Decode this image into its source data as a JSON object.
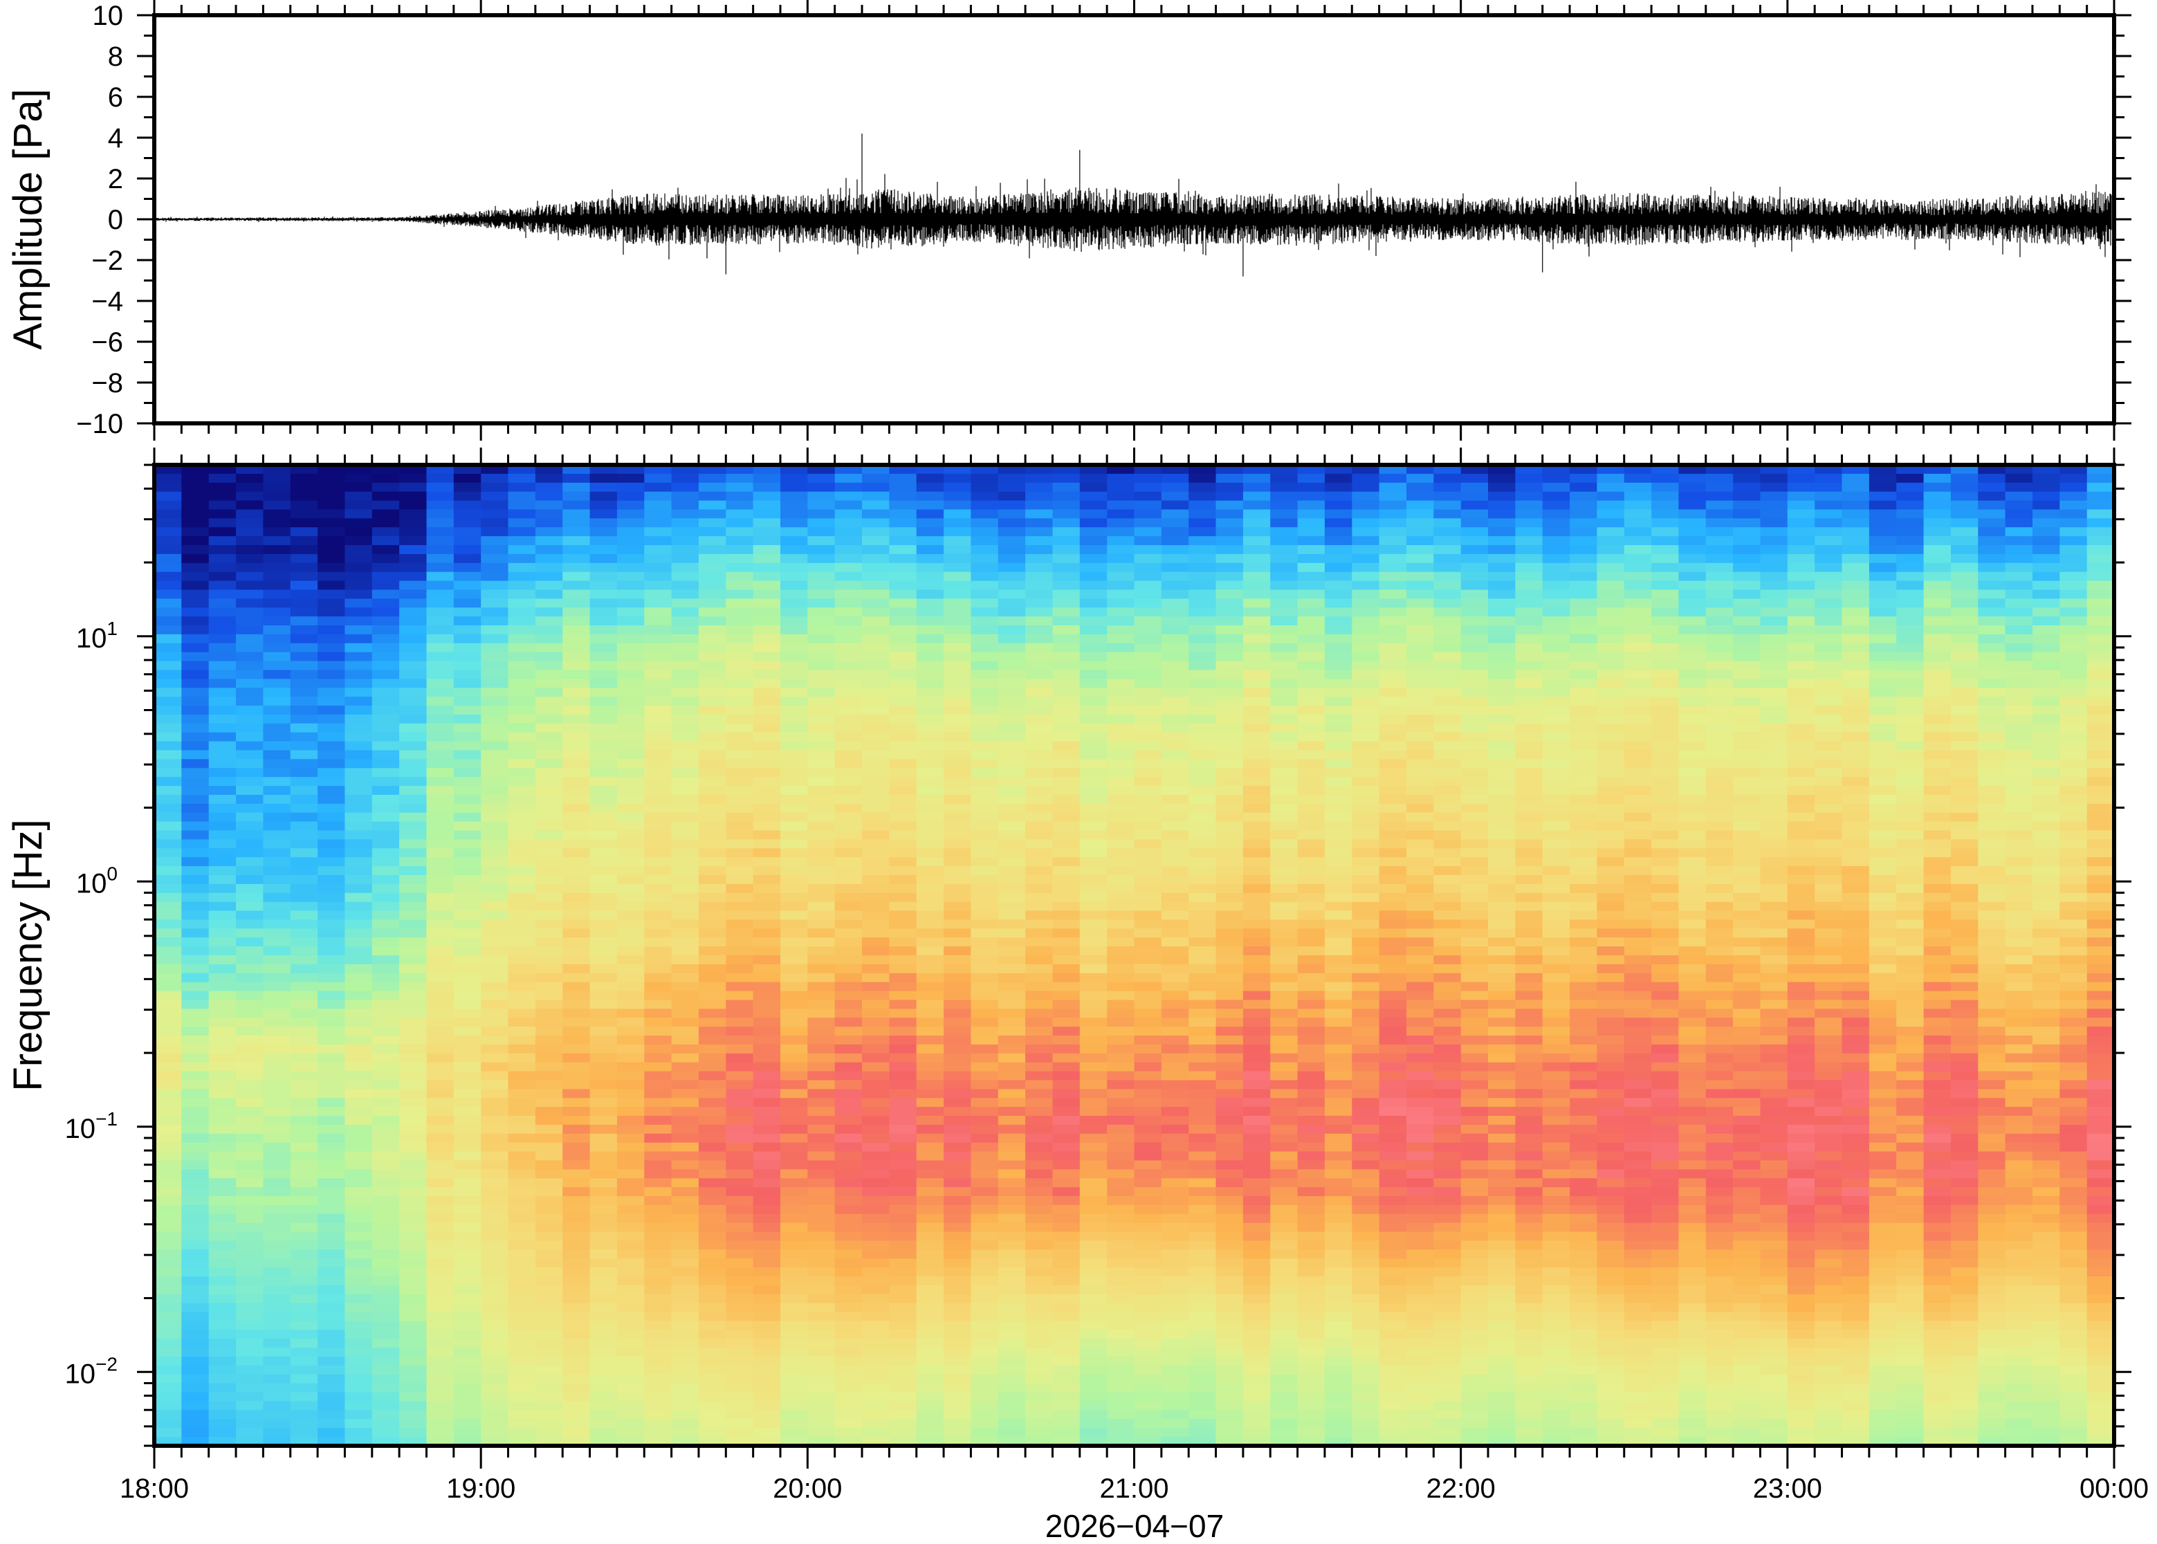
{
  "chart_data": [
    {
      "type": "line",
      "ylabel": "Amplitude [Pa]",
      "ylim": [
        -10,
        10
      ],
      "yticks": [
        "10",
        "8",
        "6",
        "4",
        "2",
        "0",
        "−2",
        "−4",
        "−6",
        "−8",
        "−10"
      ],
      "ytick_values": [
        10,
        8,
        6,
        4,
        2,
        0,
        -2,
        -4,
        -6,
        -8,
        -10
      ],
      "xlim": [
        "18:00",
        "00:00"
      ],
      "grid": false,
      "color": "#000000",
      "envelope": {
        "time": [
          "18:00",
          "18:45",
          "19:00",
          "19:15",
          "19:30",
          "20:00",
          "20:15",
          "20:30",
          "20:50",
          "21:15",
          "21:30",
          "22:00",
          "22:30",
          "23:00",
          "23:30",
          "00:00"
        ],
        "amplitude": [
          0.08,
          0.1,
          0.4,
          0.8,
          1.3,
          1.2,
          1.5,
          1.1,
          1.6,
          1.2,
          1.3,
          1.0,
          1.3,
          1.1,
          1.0,
          1.4
        ]
      },
      "peaks": [
        {
          "time": "19:45",
          "value": -2.7
        },
        {
          "time": "20:10",
          "value": 4.2
        },
        {
          "time": "20:50",
          "value": 3.4
        },
        {
          "time": "21:20",
          "value": -2.8
        },
        {
          "time": "22:15",
          "value": -2.6
        }
      ]
    },
    {
      "type": "heatmap",
      "ylabel": "Frequency [Hz]",
      "yscale": "log",
      "ylim": [
        0.005,
        50
      ],
      "yticks": [
        {
          "base": "10",
          "exp": "1",
          "value": 10
        },
        {
          "base": "10",
          "exp": "0",
          "value": 1
        },
        {
          "base": "10",
          "exp": "−1",
          "value": 0.1
        },
        {
          "base": "10",
          "exp": "−2",
          "value": 0.01
        }
      ],
      "xlabel": "2026−04−07",
      "xticks": [
        "18:00",
        "19:00",
        "20:00",
        "21:00",
        "22:00",
        "23:00",
        "00:00"
      ],
      "colormap": [
        "#0b0a78",
        "#1450e6",
        "#28b4ff",
        "#64e6e6",
        "#b4f5a0",
        "#e6f08c",
        "#f5dc78",
        "#fcb450",
        "#f56464",
        "#ff8c96"
      ],
      "time_bins": [
        "18:00",
        "18:30",
        "19:00",
        "19:30",
        "20:00",
        "20:30",
        "21:00",
        "21:30",
        "22:00",
        "22:30",
        "23:00",
        "23:30",
        "00:00"
      ],
      "freq_bins": [
        50,
        20,
        10,
        5,
        2,
        1,
        0.5,
        0.2,
        0.1,
        0.05,
        0.02,
        0.01,
        0.005
      ],
      "relative_level": [
        [
          0.0,
          0.0,
          0.02,
          0.1,
          0.12,
          0.08,
          0.06,
          0.08,
          0.07,
          0.1,
          0.06,
          0.08,
          0.12
        ],
        [
          0.06,
          0.05,
          0.15,
          0.3,
          0.33,
          0.28,
          0.26,
          0.28,
          0.27,
          0.3,
          0.24,
          0.28,
          0.3
        ],
        [
          0.16,
          0.15,
          0.3,
          0.46,
          0.48,
          0.44,
          0.42,
          0.44,
          0.44,
          0.46,
          0.42,
          0.44,
          0.46
        ],
        [
          0.22,
          0.2,
          0.4,
          0.56,
          0.58,
          0.56,
          0.55,
          0.56,
          0.56,
          0.58,
          0.55,
          0.56,
          0.57
        ],
        [
          0.24,
          0.23,
          0.46,
          0.62,
          0.64,
          0.62,
          0.62,
          0.63,
          0.63,
          0.64,
          0.62,
          0.63,
          0.64
        ],
        [
          0.28,
          0.27,
          0.5,
          0.66,
          0.68,
          0.67,
          0.67,
          0.68,
          0.68,
          0.69,
          0.67,
          0.67,
          0.68
        ],
        [
          0.36,
          0.36,
          0.56,
          0.72,
          0.76,
          0.74,
          0.74,
          0.75,
          0.75,
          0.76,
          0.74,
          0.73,
          0.74
        ],
        [
          0.56,
          0.55,
          0.66,
          0.82,
          0.85,
          0.84,
          0.84,
          0.84,
          0.84,
          0.85,
          0.83,
          0.82,
          0.84
        ],
        [
          0.48,
          0.46,
          0.64,
          0.86,
          0.9,
          0.88,
          0.9,
          0.88,
          0.87,
          0.88,
          0.88,
          0.86,
          0.9
        ],
        [
          0.42,
          0.44,
          0.62,
          0.82,
          0.86,
          0.84,
          0.82,
          0.82,
          0.84,
          0.86,
          0.86,
          0.84,
          0.86
        ],
        [
          0.34,
          0.36,
          0.56,
          0.72,
          0.74,
          0.68,
          0.64,
          0.66,
          0.66,
          0.7,
          0.74,
          0.7,
          0.72
        ],
        [
          0.28,
          0.32,
          0.5,
          0.62,
          0.6,
          0.56,
          0.5,
          0.52,
          0.54,
          0.56,
          0.58,
          0.55,
          0.58
        ],
        [
          0.24,
          0.28,
          0.46,
          0.54,
          0.52,
          0.48,
          0.42,
          0.46,
          0.46,
          0.48,
          0.48,
          0.46,
          0.48
        ]
      ]
    }
  ]
}
